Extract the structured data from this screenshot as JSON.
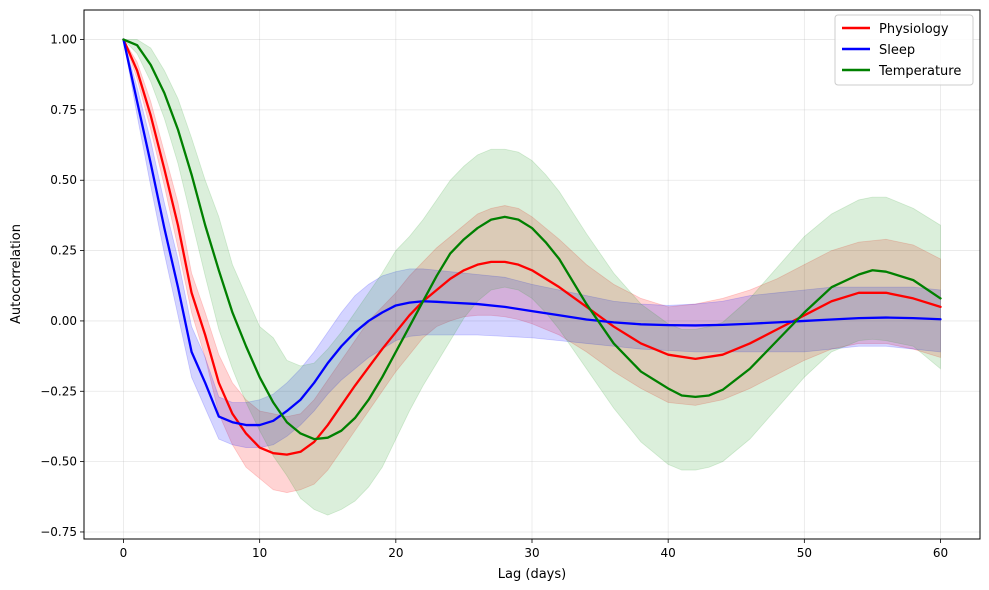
{
  "chart_data": {
    "type": "line",
    "title": "",
    "xlabel": "Lag (days)",
    "ylabel": "Autocorrelation",
    "xlim": [
      -2.9,
      62.9
    ],
    "ylim": [
      -0.775,
      1.105
    ],
    "xticks": [
      0,
      10,
      20,
      30,
      40,
      50,
      60
    ],
    "xtick_labels": [
      "0",
      "10",
      "20",
      "30",
      "40",
      "50",
      "60"
    ],
    "yticks": [
      -0.75,
      -0.5,
      -0.25,
      0.0,
      0.25,
      0.5,
      0.75,
      1.0
    ],
    "ytick_labels": [
      "−0.75",
      "−0.50",
      "−0.25",
      "0.00",
      "0.25",
      "0.50",
      "0.75",
      "1.00"
    ],
    "grid": true,
    "legend_position": "top-right",
    "series": [
      {
        "name": "Physiology",
        "color": "#ff0000",
        "band_color": "#ff0000",
        "x": [
          0,
          1,
          2,
          3,
          4,
          5,
          6,
          7,
          8,
          9,
          10,
          11,
          12,
          13,
          14,
          15,
          16,
          17,
          18,
          19,
          20,
          21,
          22,
          23,
          24,
          25,
          26,
          27,
          28,
          29,
          30,
          32,
          34,
          36,
          38,
          40,
          42,
          44,
          46,
          48,
          50,
          52,
          54,
          56,
          58,
          60
        ],
        "values": [
          1.0,
          0.89,
          0.73,
          0.54,
          0.34,
          0.1,
          -0.05,
          -0.22,
          -0.33,
          -0.4,
          -0.45,
          -0.47,
          -0.475,
          -0.465,
          -0.43,
          -0.37,
          -0.3,
          -0.23,
          -0.165,
          -0.1,
          -0.04,
          0.02,
          0.07,
          0.11,
          0.15,
          0.18,
          0.2,
          0.21,
          0.21,
          0.2,
          0.18,
          0.12,
          0.05,
          -0.02,
          -0.08,
          -0.12,
          -0.135,
          -0.12,
          -0.08,
          -0.03,
          0.02,
          0.07,
          0.1,
          0.1,
          0.08,
          0.05
        ],
        "lower": [
          1.0,
          0.86,
          0.68,
          0.48,
          0.26,
          0.03,
          -0.13,
          -0.33,
          -0.44,
          -0.52,
          -0.56,
          -0.6,
          -0.61,
          -0.6,
          -0.58,
          -0.53,
          -0.46,
          -0.39,
          -0.32,
          -0.25,
          -0.18,
          -0.12,
          -0.06,
          -0.02,
          0.0,
          0.015,
          0.02,
          0.02,
          0.015,
          0.005,
          -0.01,
          -0.05,
          -0.11,
          -0.18,
          -0.24,
          -0.29,
          -0.3,
          -0.28,
          -0.24,
          -0.19,
          -0.14,
          -0.1,
          -0.08,
          -0.08,
          -0.1,
          -0.13
        ],
        "upper": [
          1.0,
          0.92,
          0.78,
          0.6,
          0.42,
          0.17,
          0.03,
          -0.12,
          -0.22,
          -0.28,
          -0.32,
          -0.33,
          -0.34,
          -0.33,
          -0.28,
          -0.21,
          -0.14,
          -0.07,
          0.0,
          0.05,
          0.1,
          0.16,
          0.21,
          0.26,
          0.3,
          0.34,
          0.38,
          0.4,
          0.41,
          0.4,
          0.37,
          0.29,
          0.2,
          0.13,
          0.08,
          0.05,
          0.06,
          0.08,
          0.11,
          0.15,
          0.2,
          0.25,
          0.28,
          0.29,
          0.27,
          0.22
        ]
      },
      {
        "name": "Sleep",
        "color": "#0000ff",
        "band_color": "#0000ff",
        "x": [
          0,
          1,
          2,
          3,
          4,
          5,
          6,
          7,
          8,
          9,
          10,
          11,
          12,
          13,
          14,
          15,
          16,
          17,
          18,
          19,
          20,
          21,
          22,
          23,
          24,
          26,
          28,
          30,
          32,
          34,
          36,
          38,
          40,
          42,
          44,
          46,
          48,
          50,
          52,
          54,
          56,
          58,
          60
        ],
        "values": [
          1.0,
          0.78,
          0.56,
          0.33,
          0.12,
          -0.11,
          -0.22,
          -0.34,
          -0.36,
          -0.37,
          -0.37,
          -0.355,
          -0.32,
          -0.28,
          -0.22,
          -0.15,
          -0.09,
          -0.04,
          0.0,
          0.03,
          0.055,
          0.065,
          0.07,
          0.068,
          0.065,
          0.06,
          0.05,
          0.035,
          0.02,
          0.005,
          -0.005,
          -0.012,
          -0.015,
          -0.016,
          -0.014,
          -0.01,
          -0.005,
          0.0,
          0.005,
          0.01,
          0.012,
          0.01,
          0.006
        ],
        "lower": [
          1.0,
          0.73,
          0.48,
          0.24,
          0.02,
          -0.2,
          -0.31,
          -0.42,
          -0.44,
          -0.45,
          -0.45,
          -0.44,
          -0.41,
          -0.37,
          -0.32,
          -0.26,
          -0.21,
          -0.17,
          -0.13,
          -0.1,
          -0.07,
          -0.055,
          -0.05,
          -0.05,
          -0.05,
          -0.05,
          -0.055,
          -0.06,
          -0.07,
          -0.08,
          -0.09,
          -0.1,
          -0.105,
          -0.11,
          -0.11,
          -0.11,
          -0.11,
          -0.11,
          -0.1,
          -0.09,
          -0.09,
          -0.1,
          -0.11
        ],
        "upper": [
          1.0,
          0.83,
          0.64,
          0.42,
          0.22,
          -0.02,
          -0.13,
          -0.27,
          -0.29,
          -0.29,
          -0.28,
          -0.26,
          -0.22,
          -0.17,
          -0.11,
          -0.04,
          0.03,
          0.09,
          0.13,
          0.16,
          0.175,
          0.185,
          0.185,
          0.18,
          0.175,
          0.165,
          0.155,
          0.13,
          0.11,
          0.09,
          0.07,
          0.06,
          0.055,
          0.06,
          0.07,
          0.09,
          0.1,
          0.11,
          0.12,
          0.12,
          0.12,
          0.12,
          0.11
        ]
      },
      {
        "name": "Temperature",
        "color": "#008000",
        "band_color": "#2ca02c",
        "x": [
          0,
          1,
          2,
          3,
          4,
          5,
          6,
          7,
          8,
          9,
          10,
          11,
          12,
          13,
          14,
          15,
          16,
          17,
          18,
          19,
          20,
          21,
          22,
          23,
          24,
          25,
          26,
          27,
          28,
          29,
          30,
          31,
          32,
          34,
          36,
          38,
          40,
          41,
          42,
          43,
          44,
          46,
          48,
          50,
          52,
          54,
          55,
          56,
          58,
          60
        ],
        "values": [
          1.0,
          0.98,
          0.91,
          0.81,
          0.68,
          0.52,
          0.34,
          0.18,
          0.03,
          -0.09,
          -0.2,
          -0.29,
          -0.36,
          -0.4,
          -0.42,
          -0.415,
          -0.39,
          -0.345,
          -0.28,
          -0.2,
          -0.11,
          -0.02,
          0.07,
          0.16,
          0.24,
          0.29,
          0.33,
          0.36,
          0.37,
          0.36,
          0.33,
          0.28,
          0.22,
          0.06,
          -0.08,
          -0.18,
          -0.24,
          -0.265,
          -0.27,
          -0.265,
          -0.245,
          -0.17,
          -0.07,
          0.03,
          0.12,
          0.165,
          0.18,
          0.175,
          0.145,
          0.08
        ],
        "lower": [
          1.0,
          0.95,
          0.85,
          0.72,
          0.56,
          0.36,
          0.16,
          -0.03,
          -0.17,
          -0.29,
          -0.39,
          -0.48,
          -0.55,
          -0.63,
          -0.67,
          -0.69,
          -0.67,
          -0.64,
          -0.59,
          -0.52,
          -0.42,
          -0.32,
          -0.23,
          -0.15,
          -0.07,
          0.01,
          0.07,
          0.11,
          0.12,
          0.11,
          0.08,
          0.03,
          -0.03,
          -0.17,
          -0.31,
          -0.43,
          -0.51,
          -0.53,
          -0.53,
          -0.52,
          -0.5,
          -0.42,
          -0.31,
          -0.2,
          -0.11,
          -0.07,
          -0.065,
          -0.07,
          -0.09,
          -0.17
        ],
        "upper": [
          1.0,
          1.0,
          0.97,
          0.89,
          0.79,
          0.65,
          0.5,
          0.37,
          0.2,
          0.09,
          -0.02,
          -0.06,
          -0.14,
          -0.16,
          -0.15,
          -0.1,
          -0.04,
          0.03,
          0.1,
          0.17,
          0.25,
          0.3,
          0.36,
          0.43,
          0.5,
          0.55,
          0.59,
          0.61,
          0.61,
          0.6,
          0.57,
          0.52,
          0.46,
          0.31,
          0.17,
          0.06,
          -0.01,
          -0.03,
          -0.03,
          -0.02,
          -0.005,
          0.08,
          0.19,
          0.3,
          0.38,
          0.43,
          0.44,
          0.44,
          0.4,
          0.34
        ]
      }
    ]
  }
}
